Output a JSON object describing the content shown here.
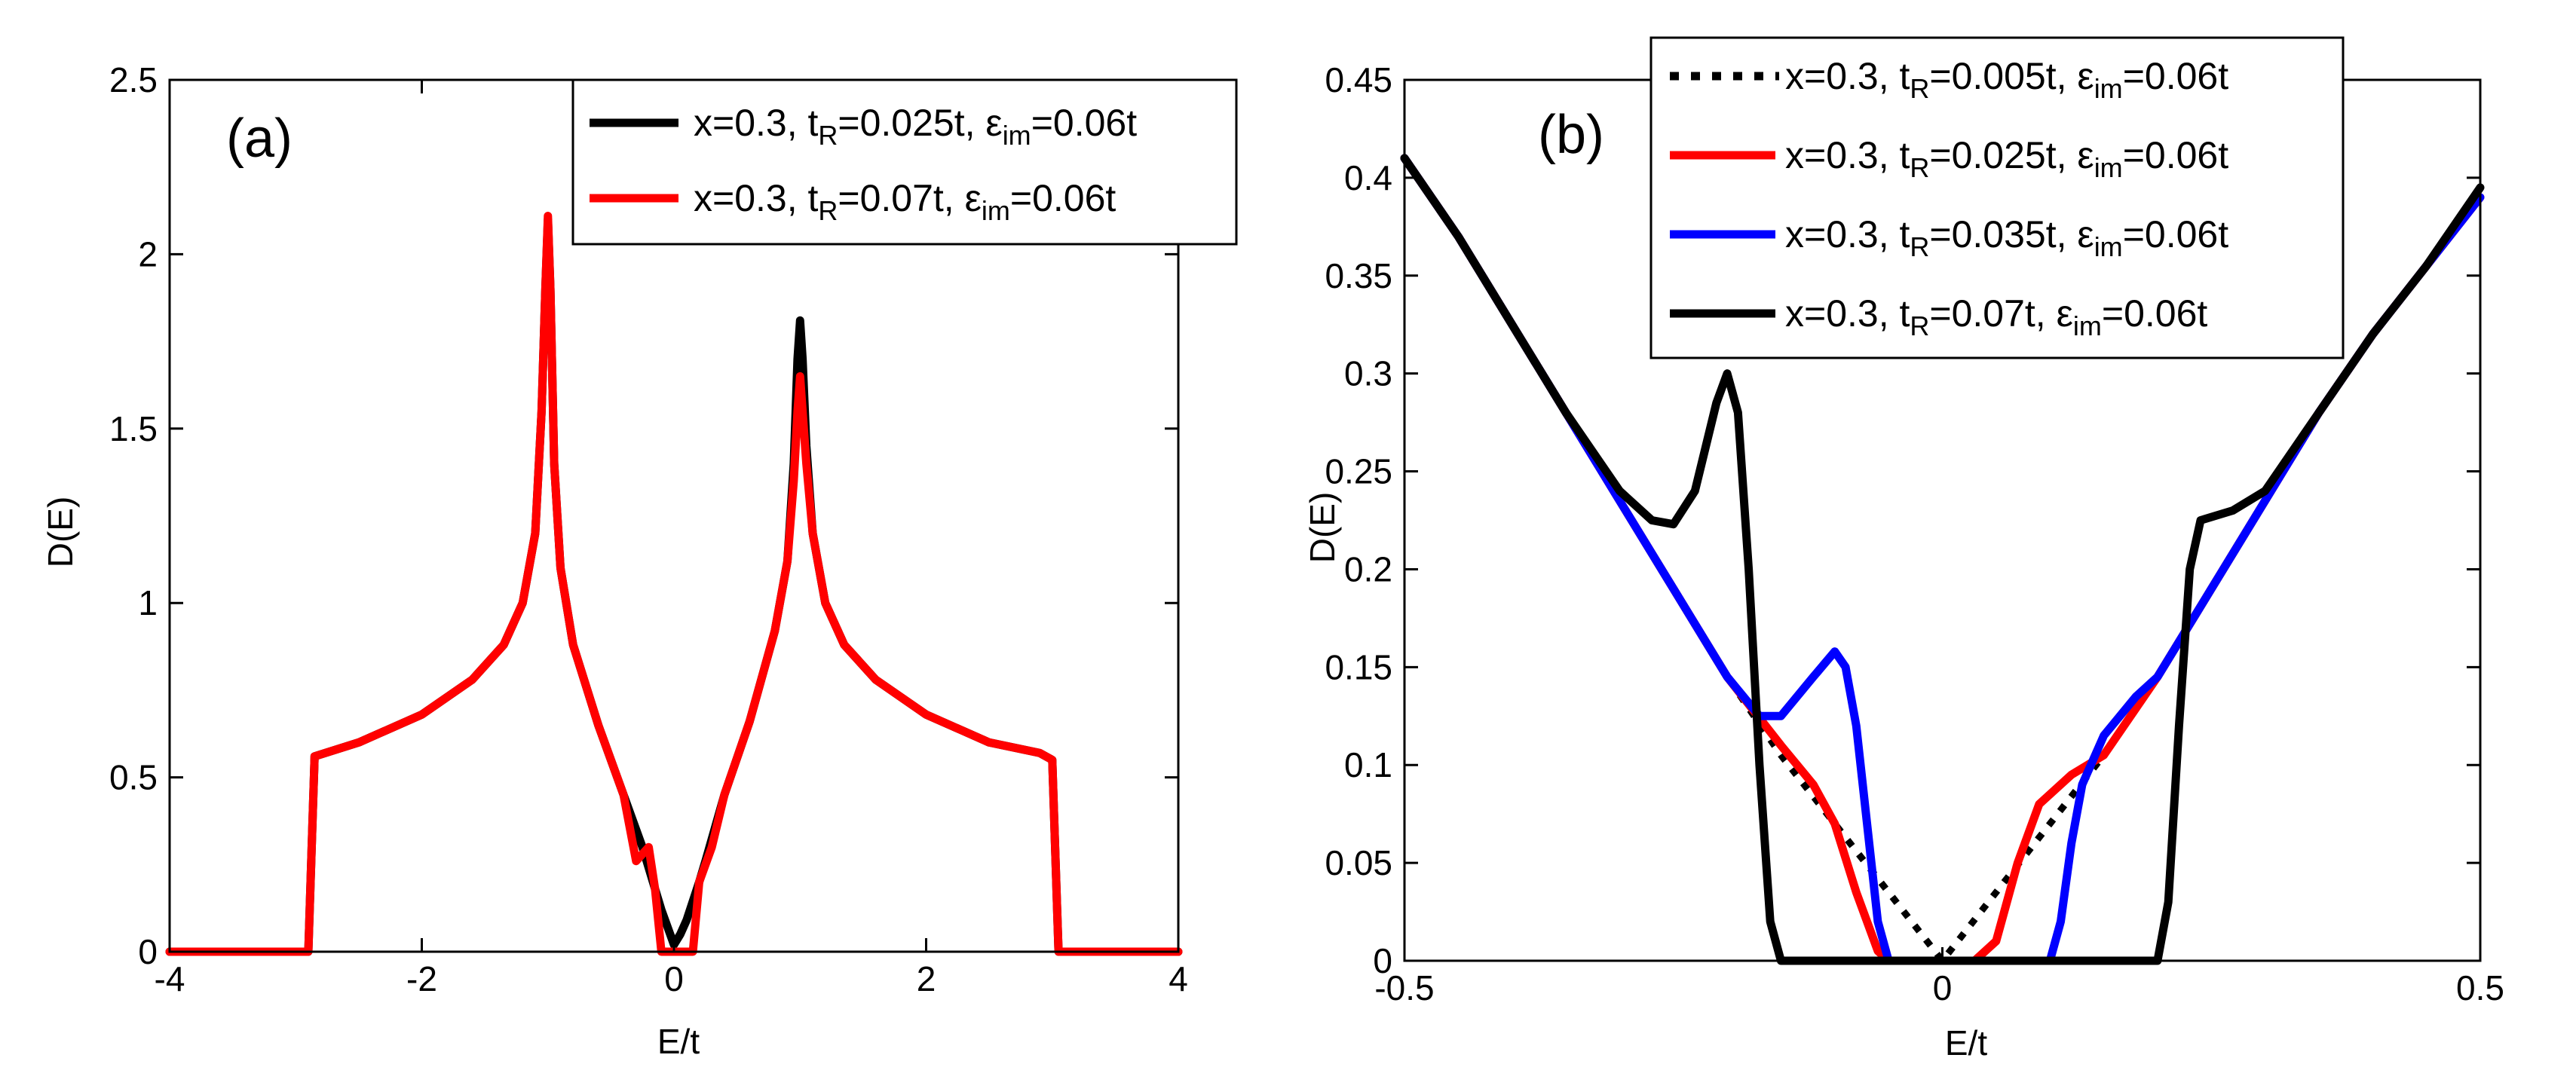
{
  "chart_data": [
    {
      "type": "line",
      "panel_label": "(a)",
      "xlabel": "E/t",
      "ylabel": "D(E)",
      "xlim": [
        -4,
        4
      ],
      "ylim": [
        0,
        2.5
      ],
      "x_ticks": [
        -4,
        -2,
        0,
        2,
        4
      ],
      "y_ticks": [
        0,
        0.5,
        1,
        1.5,
        2,
        2.5
      ],
      "x_tick_labels": [
        "-4",
        "-2",
        "0",
        "2",
        "4"
      ],
      "y_tick_labels": [
        "0",
        "0.5",
        "1",
        "1.5",
        "2",
        "2.5"
      ],
      "legend_position": "top-right",
      "series": [
        {
          "name": "x=0.3, t_R=0.025t, ε_im=0.06t",
          "legend": {
            "main": "x=0.3, t",
            "sub1": "R",
            "mid": "=0.025t, ε",
            "sub2": "im",
            "end": "=0.06t"
          },
          "color": "#000000",
          "style": "solid",
          "points": [
            [
              -4,
              0
            ],
            [
              -2.9,
              0
            ],
            [
              -2.85,
              0.56
            ],
            [
              -2.5,
              0.6
            ],
            [
              -2,
              0.68
            ],
            [
              -1.6,
              0.78
            ],
            [
              -1.35,
              0.88
            ],
            [
              -1.2,
              1.0
            ],
            [
              -1.1,
              1.2
            ],
            [
              -1.05,
              1.55
            ],
            [
              -1.02,
              1.9
            ],
            [
              -1.0,
              2.1
            ],
            [
              -0.98,
              1.9
            ],
            [
              -0.95,
              1.4
            ],
            [
              -0.9,
              1.1
            ],
            [
              -0.8,
              0.88
            ],
            [
              -0.6,
              0.65
            ],
            [
              -0.4,
              0.45
            ],
            [
              -0.25,
              0.3
            ],
            [
              -0.1,
              0.12
            ],
            [
              0,
              0.02
            ],
            [
              0.05,
              0.05
            ],
            [
              0.1,
              0.09
            ],
            [
              0.2,
              0.2
            ],
            [
              0.25,
              0.26
            ],
            [
              0.4,
              0.45
            ],
            [
              0.6,
              0.66
            ],
            [
              0.8,
              0.92
            ],
            [
              0.9,
              1.12
            ],
            [
              0.95,
              1.4
            ],
            [
              0.98,
              1.7
            ],
            [
              1.0,
              1.81
            ],
            [
              1.02,
              1.7
            ],
            [
              1.05,
              1.45
            ],
            [
              1.1,
              1.2
            ],
            [
              1.2,
              1.0
            ],
            [
              1.35,
              0.88
            ],
            [
              1.6,
              0.78
            ],
            [
              2,
              0.68
            ],
            [
              2.5,
              0.6
            ],
            [
              2.9,
              0.57
            ],
            [
              3.0,
              0.55
            ],
            [
              3.05,
              0.0
            ],
            [
              4,
              0
            ]
          ]
        },
        {
          "name": "x=0.3, t_R=0.07t, ε_im=0.06t",
          "legend": {
            "main": "x=0.3, t",
            "sub1": "R",
            "mid": "=0.07t, ε",
            "sub2": "im",
            "end": "=0.06t"
          },
          "color": "#ff0000",
          "style": "solid",
          "points": [
            [
              -4,
              0
            ],
            [
              -2.9,
              0
            ],
            [
              -2.85,
              0.56
            ],
            [
              -2.5,
              0.6
            ],
            [
              -2,
              0.68
            ],
            [
              -1.6,
              0.78
            ],
            [
              -1.35,
              0.88
            ],
            [
              -1.2,
              1.0
            ],
            [
              -1.1,
              1.2
            ],
            [
              -1.05,
              1.55
            ],
            [
              -1.02,
              1.9
            ],
            [
              -1.0,
              2.11
            ],
            [
              -0.98,
              1.9
            ],
            [
              -0.95,
              1.4
            ],
            [
              -0.9,
              1.1
            ],
            [
              -0.8,
              0.88
            ],
            [
              -0.6,
              0.65
            ],
            [
              -0.4,
              0.45
            ],
            [
              -0.3,
              0.26
            ],
            [
              -0.2,
              0.3
            ],
            [
              -0.15,
              0.18
            ],
            [
              -0.1,
              0.0
            ],
            [
              0.15,
              0.0
            ],
            [
              0.2,
              0.2
            ],
            [
              0.3,
              0.3
            ],
            [
              0.4,
              0.45
            ],
            [
              0.6,
              0.66
            ],
            [
              0.8,
              0.92
            ],
            [
              0.9,
              1.12
            ],
            [
              0.95,
              1.35
            ],
            [
              0.98,
              1.55
            ],
            [
              1.0,
              1.65
            ],
            [
              1.02,
              1.55
            ],
            [
              1.05,
              1.4
            ],
            [
              1.1,
              1.2
            ],
            [
              1.2,
              1.0
            ],
            [
              1.35,
              0.88
            ],
            [
              1.6,
              0.78
            ],
            [
              2,
              0.68
            ],
            [
              2.5,
              0.6
            ],
            [
              2.9,
              0.57
            ],
            [
              3.0,
              0.55
            ],
            [
              3.05,
              0.0
            ],
            [
              4,
              0
            ]
          ]
        }
      ]
    },
    {
      "type": "line",
      "panel_label": "(b)",
      "xlabel": "E/t",
      "ylabel": "D(E)",
      "xlim": [
        -0.5,
        0.5
      ],
      "ylim": [
        0,
        0.45
      ],
      "x_ticks": [
        -0.5,
        0,
        0.5
      ],
      "y_ticks": [
        0,
        0.05,
        0.1,
        0.15,
        0.2,
        0.25,
        0.3,
        0.35,
        0.4,
        0.45
      ],
      "x_tick_labels": [
        "-0.5",
        "0",
        "0.5"
      ],
      "y_tick_labels": [
        "0",
        "0.05",
        "0.1",
        "0.15",
        "0.2",
        "0.25",
        "0.3",
        "0.35",
        "0.4",
        "0.45"
      ],
      "legend_position": "top",
      "series": [
        {
          "name": "x=0.3, t_R=0.005t, ε_im=0.06t",
          "legend": {
            "main": "x=0.3, t",
            "sub1": "R",
            "mid": "=0.005t, ε",
            "sub2": "im",
            "end": "=0.06t"
          },
          "color": "#000000",
          "style": "dotted",
          "points": [
            [
              -0.5,
              0.41
            ],
            [
              -0.45,
              0.37
            ],
            [
              -0.4,
              0.325
            ],
            [
              -0.35,
              0.28
            ],
            [
              -0.3,
              0.235
            ],
            [
              -0.25,
              0.19
            ],
            [
              -0.2,
              0.145
            ],
            [
              -0.15,
              0.105
            ],
            [
              -0.1,
              0.07
            ],
            [
              -0.05,
              0.035
            ],
            [
              0,
              0.0
            ],
            [
              0.05,
              0.035
            ],
            [
              0.1,
              0.07
            ],
            [
              0.15,
              0.105
            ],
            [
              0.2,
              0.145
            ],
            [
              0.25,
              0.19
            ],
            [
              0.3,
              0.235
            ],
            [
              0.35,
              0.28
            ],
            [
              0.4,
              0.32
            ],
            [
              0.45,
              0.355
            ],
            [
              0.5,
              0.39
            ]
          ]
        },
        {
          "name": "x=0.3, t_R=0.025t, ε_im=0.06t",
          "legend": {
            "main": "x=0.3, t",
            "sub1": "R",
            "mid": "=0.025t, ε",
            "sub2": "im",
            "end": "=0.06t"
          },
          "color": "#ff0000",
          "style": "solid",
          "points": [
            [
              -0.5,
              0.41
            ],
            [
              -0.45,
              0.37
            ],
            [
              -0.4,
              0.325
            ],
            [
              -0.35,
              0.28
            ],
            [
              -0.3,
              0.235
            ],
            [
              -0.25,
              0.19
            ],
            [
              -0.2,
              0.145
            ],
            [
              -0.15,
              0.11
            ],
            [
              -0.12,
              0.09
            ],
            [
              -0.1,
              0.07
            ],
            [
              -0.08,
              0.035
            ],
            [
              -0.06,
              0.005
            ],
            [
              -0.05,
              0.0
            ],
            [
              0.03,
              0.0
            ],
            [
              0.05,
              0.01
            ],
            [
              0.07,
              0.05
            ],
            [
              0.09,
              0.08
            ],
            [
              0.12,
              0.095
            ],
            [
              0.15,
              0.105
            ],
            [
              0.2,
              0.145
            ],
            [
              0.25,
              0.19
            ],
            [
              0.3,
              0.235
            ],
            [
              0.35,
              0.28
            ],
            [
              0.4,
              0.32
            ],
            [
              0.45,
              0.355
            ],
            [
              0.5,
              0.39
            ]
          ]
        },
        {
          "name": "x=0.3, t_R=0.035t, ε_im=0.06t",
          "legend": {
            "main": "x=0.3, t",
            "sub1": "R",
            "mid": "=0.035t, ε",
            "sub2": "im",
            "end": "=0.06t"
          },
          "color": "#0000ff",
          "style": "solid",
          "points": [
            [
              -0.5,
              0.41
            ],
            [
              -0.45,
              0.37
            ],
            [
              -0.4,
              0.325
            ],
            [
              -0.35,
              0.28
            ],
            [
              -0.3,
              0.235
            ],
            [
              -0.25,
              0.19
            ],
            [
              -0.2,
              0.145
            ],
            [
              -0.17,
              0.125
            ],
            [
              -0.15,
              0.125
            ],
            [
              -0.12,
              0.145
            ],
            [
              -0.1,
              0.158
            ],
            [
              -0.09,
              0.15
            ],
            [
              -0.08,
              0.12
            ],
            [
              -0.07,
              0.07
            ],
            [
              -0.06,
              0.02
            ],
            [
              -0.05,
              0.0
            ],
            [
              0.1,
              0.0
            ],
            [
              0.11,
              0.02
            ],
            [
              0.12,
              0.06
            ],
            [
              0.13,
              0.09
            ],
            [
              0.15,
              0.115
            ],
            [
              0.18,
              0.135
            ],
            [
              0.2,
              0.145
            ],
            [
              0.25,
              0.19
            ],
            [
              0.3,
              0.235
            ],
            [
              0.35,
              0.28
            ],
            [
              0.4,
              0.32
            ],
            [
              0.45,
              0.355
            ],
            [
              0.5,
              0.39
            ]
          ]
        },
        {
          "name": "x=0.3, t_R=0.07t, ε_im=0.06t",
          "legend": {
            "main": "x=0.3, t",
            "sub1": "R",
            "mid": "=0.07t, ε",
            "sub2": "im",
            "end": "=0.06t"
          },
          "color": "#000000",
          "style": "solid",
          "points": [
            [
              -0.5,
              0.41
            ],
            [
              -0.45,
              0.37
            ],
            [
              -0.4,
              0.325
            ],
            [
              -0.35,
              0.28
            ],
            [
              -0.3,
              0.24
            ],
            [
              -0.27,
              0.225
            ],
            [
              -0.25,
              0.223
            ],
            [
              -0.23,
              0.24
            ],
            [
              -0.21,
              0.285
            ],
            [
              -0.2,
              0.3
            ],
            [
              -0.19,
              0.28
            ],
            [
              -0.18,
              0.2
            ],
            [
              -0.17,
              0.1
            ],
            [
              -0.16,
              0.02
            ],
            [
              -0.15,
              0.0
            ],
            [
              0.2,
              0.0
            ],
            [
              0.21,
              0.03
            ],
            [
              0.22,
              0.12
            ],
            [
              0.23,
              0.2
            ],
            [
              0.24,
              0.225
            ],
            [
              0.27,
              0.23
            ],
            [
              0.3,
              0.24
            ],
            [
              0.35,
              0.28
            ],
            [
              0.4,
              0.32
            ],
            [
              0.45,
              0.355
            ],
            [
              0.5,
              0.395
            ]
          ]
        }
      ]
    }
  ]
}
